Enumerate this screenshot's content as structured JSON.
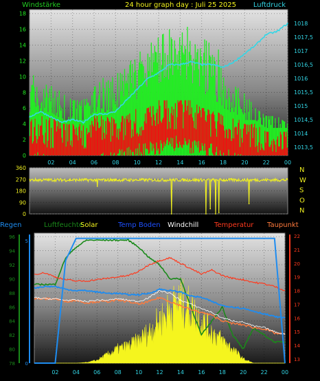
{
  "header": {
    "left_label": "Windstärke",
    "title": "24 hour graph day : Juli 25 2025",
    "right_label": "Luftdruck"
  },
  "colors": {
    "wind_green": "#22ee22",
    "wind_red": "#ee1111",
    "pressure_cyan": "#33d6e6",
    "direction_yellow": "#f0f020",
    "humidity_green": "#1a8a1a",
    "solar_yellow": "#f5f51e",
    "soil_blue": "#1e8cf0",
    "windchill_white": "#ffffff",
    "temp_red": "#ff3a1e",
    "dewpoint_orange": "#ff7a3c"
  },
  "legend": {
    "regen": "Regen",
    "luftfeuchte": "Luftfeuchte",
    "solar": "Solar",
    "temp_boden": "Temp Boden",
    "windchill": "Windchill",
    "temperatur": "Temperatur",
    "taupunkt": "Taupunkt"
  },
  "chart_data": [
    {
      "type": "bar",
      "name": "wind",
      "x_ticks": [
        "02",
        "04",
        "06",
        "08",
        "10",
        "12",
        "14",
        "16",
        "18",
        "20",
        "22",
        "00"
      ],
      "y_ticks_left": [
        "0",
        "2",
        "4",
        "6",
        "8",
        "10",
        "12",
        "14",
        "16",
        "18"
      ],
      "y_ticks_right": [
        "1013,5",
        "1014",
        "1014,5",
        "1015",
        "1015,5",
        "1016",
        "1016,5",
        "1017",
        "1017,5",
        "1018"
      ],
      "ylim": [
        0,
        18.5
      ],
      "ylim_right": [
        1013.2,
        1018.5
      ],
      "hours": [
        0,
        1,
        2,
        3,
        4,
        5,
        6,
        7,
        8,
        9,
        10,
        11,
        12,
        13,
        14,
        15,
        16,
        17,
        18,
        19,
        20,
        21,
        22,
        23,
        24
      ],
      "gust_max": [
        11,
        10,
        9,
        8,
        7,
        7,
        9,
        10,
        11,
        12,
        13,
        14,
        15,
        16,
        17,
        16,
        15,
        14,
        13,
        10,
        8,
        6,
        5,
        5,
        4
      ],
      "gust_typ": [
        8,
        7,
        6,
        6,
        5,
        5,
        6,
        7,
        8,
        9,
        10,
        11,
        12,
        12,
        13,
        12,
        11,
        10,
        9,
        7,
        5,
        4,
        4,
        4,
        3
      ],
      "wind_max": [
        5,
        5,
        5,
        4,
        4,
        4,
        5,
        5,
        5,
        5,
        6,
        6,
        7,
        7,
        7,
        7,
        6,
        6,
        5,
        5,
        4,
        4,
        3,
        3,
        3
      ],
      "wind_typ": [
        2.5,
        2.5,
        2,
        2,
        2,
        1.5,
        2,
        2.5,
        3,
        3,
        3.5,
        4,
        4,
        4.5,
        4.5,
        4,
        4,
        3.5,
        3,
        2.5,
        2,
        1.5,
        1.5,
        1.5,
        1.5
      ],
      "pressure": [
        1014.6,
        1014.8,
        1014.6,
        1014.4,
        1014.5,
        1014.4,
        1014.7,
        1014.7,
        1014.8,
        1015.2,
        1015.6,
        1016.0,
        1016.2,
        1016.5,
        1016.5,
        1016.6,
        1016.5,
        1016.5,
        1016.4,
        1016.6,
        1016.9,
        1017.2,
        1017.6,
        1017.7,
        1018.0
      ]
    },
    {
      "type": "line",
      "name": "wind_direction",
      "y_ticks": [
        "0",
        "90",
        "180",
        "270",
        "360"
      ],
      "y_ticks_right": [
        "N",
        "W",
        "S",
        "O",
        "N"
      ],
      "ylim": [
        0,
        360
      ],
      "typical": 265,
      "dips": [
        {
          "hour": 6.3,
          "value": 215
        },
        {
          "hour": 13.2,
          "value": 0
        },
        {
          "hour": 16.4,
          "value": 0
        },
        {
          "hour": 16.8,
          "value": 40
        },
        {
          "hour": 17.3,
          "value": 0
        },
        {
          "hour": 17.6,
          "value": 10
        },
        {
          "hour": 20.4,
          "value": 80
        }
      ]
    },
    {
      "type": "line",
      "name": "climate",
      "y_ticks_left": [
        "78",
        "80",
        "82",
        "84",
        "86",
        "88",
        "90",
        "92",
        "94",
        "96"
      ],
      "y_ticks_right": [
        "13",
        "14",
        "15",
        "16",
        "17",
        "18",
        "19",
        "20",
        "21",
        "22"
      ],
      "ylim": [
        78,
        96.5
      ],
      "ylim_right": [
        12.7,
        22.2
      ],
      "rain_ticks": [
        "0",
        "5"
      ],
      "hours": [
        0,
        1,
        2,
        3,
        4,
        5,
        6,
        7,
        8,
        9,
        10,
        11,
        12,
        13,
        14,
        15,
        16,
        17,
        18,
        19,
        20,
        21,
        22,
        23,
        24
      ],
      "humidity": [
        89.2,
        89.2,
        89.2,
        93,
        94.5,
        95.5,
        95.5,
        95.5,
        95.5,
        95.5,
        94.5,
        93,
        92,
        90,
        90,
        86,
        82,
        84,
        86,
        82,
        80,
        83,
        82,
        81,
        81
      ],
      "temperature": [
        19.2,
        19.3,
        19.0,
        18.8,
        18.7,
        18.7,
        18.8,
        18.9,
        19.0,
        19.1,
        19.4,
        19.9,
        20.2,
        20.4,
        20.0,
        19.6,
        19.2,
        19.5,
        19.1,
        18.9,
        18.8,
        18.6,
        18.5,
        18.3,
        18.0
      ],
      "soil_temp": [
        18.2,
        18.3,
        18.3,
        18.1,
        18.0,
        18.0,
        17.9,
        17.8,
        17.8,
        17.7,
        17.7,
        17.8,
        18.1,
        18.0,
        17.9,
        17.6,
        17.5,
        17.2,
        16.9,
        16.8,
        16.7,
        16.5,
        16.3,
        16.1,
        16.0
      ],
      "windchill": [
        17.5,
        17.4,
        17.4,
        17.3,
        17.3,
        17.2,
        17.3,
        17.3,
        17.4,
        17.3,
        17.2,
        17.5,
        18.0,
        17.8,
        17.3,
        17.0,
        16.7,
        16.4,
        16.0,
        15.8,
        15.7,
        15.4,
        15.3,
        15.0,
        14.8
      ],
      "dewpoint": [
        17.4,
        17.4,
        17.4,
        17.2,
        17.3,
        17.1,
        17.2,
        17.2,
        17.3,
        17.2,
        17.0,
        17.2,
        17.5,
        17.2,
        16.9,
        16.6,
        16.4,
        16.2,
        15.8,
        15.6,
        15.5,
        15.3,
        15.2,
        14.9,
        14.8
      ],
      "solar": [
        0,
        0,
        0,
        0,
        0,
        0.05,
        0.2,
        0.6,
        1.0,
        1.2,
        1.6,
        2.2,
        3.0,
        3.8,
        4.4,
        3.8,
        3.0,
        2.2,
        1.6,
        1.0,
        0.3,
        0,
        0,
        0,
        0
      ],
      "rain": [
        0,
        0,
        0,
        4.2,
        5.1,
        5.1,
        5.1,
        5.1,
        5.1,
        5.1,
        5.1,
        5.1,
        5.1,
        5.1,
        5.1,
        5.1,
        5.1,
        5.1,
        5.1,
        5.1,
        5.1,
        5.1,
        5.1,
        5.1,
        0
      ]
    }
  ]
}
